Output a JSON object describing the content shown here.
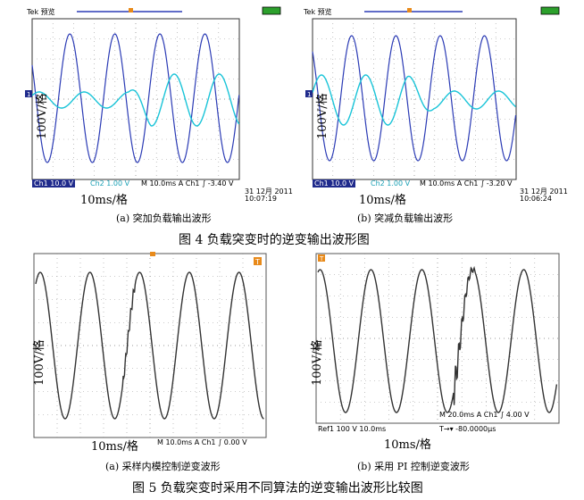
{
  "figure4": {
    "caption": "图 4  负载突变时的逆变输出波形图",
    "panels": [
      {
        "sublabel": "(a)  突加负载输出波形",
        "header": "Tek 预览",
        "ylabel": "100V/格",
        "xlabel": "10ms/格",
        "status": [
          "Ch1  10.0 V",
          "Ch2  1.00 V",
          "M 10.0ms  A  Ch1  ∫  -3.40 V"
        ],
        "timestamp": "31 12月 2011\n10:07:19"
      },
      {
        "sublabel": "(b)  突减负载输出波形",
        "header": "Tek 预览",
        "ylabel": "100V/格",
        "xlabel": "10ms/格",
        "status": [
          "Ch1  10.0 V",
          "Ch2  1.00 V",
          "M 10.0ms  A  Ch1  ∫  -3.20 V"
        ],
        "timestamp": "31 12月 2011\n10:06:24"
      }
    ]
  },
  "figure5": {
    "caption": "图 5  负载突变时采用不同算法的逆变输出波形比较图",
    "panels": [
      {
        "sublabel": "(a)  采样内模控制逆变波形",
        "ylabel": "100V/格",
        "xlabel": "10ms/格",
        "status": [
          "M 10.0ms  A  Ch1  ∫  0.00 V"
        ]
      },
      {
        "sublabel": "(b)  采用 PI 控制逆变波形",
        "ylabel": "100V/格",
        "xlabel": "10ms/格",
        "status": [
          "Ref1    100 V    10.0ms",
          "M 20.0ms  A  Ch1  ∫  4.00 V",
          "T→▾ -80.0000μs"
        ]
      }
    ]
  },
  "colors": {
    "ch1": "#2b3bb5",
    "ch2": "#19c4d8",
    "bw_trace": "#333333",
    "badge": "#1f2a8c",
    "orange_marker": "#e88a1a"
  }
}
